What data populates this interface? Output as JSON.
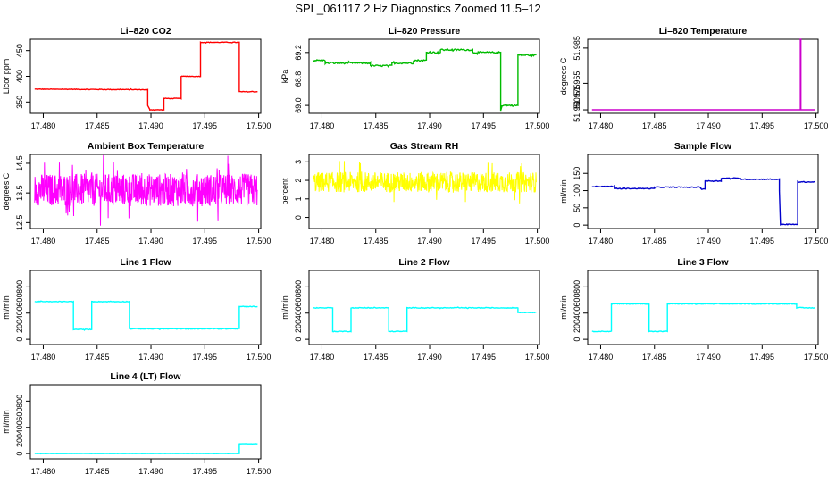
{
  "title": "SPL_061117  2 Hz Diagnostics Zoomed 11.5–12",
  "xaxis": {
    "ticks": [
      17.48,
      17.485,
      17.49,
      17.495,
      17.5
    ],
    "tick_labels": [
      "17.480",
      "17.485",
      "17.490",
      "17.495",
      "17.500"
    ]
  },
  "chart_data": [
    {
      "id": "co2",
      "type": "line",
      "title": "Li–820 CO2",
      "ylabel": "Licor ppm",
      "color": "#ff0000",
      "xlim": [
        17.4788,
        17.5002
      ],
      "ylim": [
        328,
        472
      ],
      "yticks": [
        350,
        400,
        450
      ],
      "ytick_labels": [
        "350",
        "400",
        "450"
      ],
      "noise": 0.6,
      "x": [
        17.4792,
        17.4897,
        17.4897,
        17.4899,
        17.4899,
        17.4912,
        17.4912,
        17.4928,
        17.4928,
        17.4946,
        17.4946,
        17.4982,
        17.4982,
        17.4999
      ],
      "y": [
        375,
        374,
        343,
        335,
        335,
        335,
        357,
        357,
        400,
        400,
        466,
        466,
        370,
        370
      ]
    },
    {
      "id": "pressure",
      "type": "line",
      "title": "Li–820 Pressure",
      "ylabel": "kPa",
      "color": "#00bb00",
      "xlim": [
        17.4788,
        17.5002
      ],
      "ylim": [
        68.97,
        69.25
      ],
      "yticks": [
        69.0,
        69.2
      ],
      "ytick_labels": [
        "69.0",
        "69.2"
      ],
      "extra_ytick_labels": [
        "68.8"
      ],
      "noise": 0.003,
      "x": [
        17.4792,
        17.4803,
        17.4803,
        17.4825,
        17.4825,
        17.4845,
        17.4845,
        17.4865,
        17.4865,
        17.4885,
        17.4885,
        17.4897,
        17.4897,
        17.491,
        17.491,
        17.494,
        17.494,
        17.4966,
        17.4966,
        17.4967,
        17.4967,
        17.4982,
        17.4982,
        17.4999
      ],
      "y": [
        69.17,
        69.17,
        69.16,
        69.16,
        69.16,
        69.16,
        69.15,
        69.15,
        69.16,
        69.16,
        69.17,
        69.17,
        69.2,
        69.2,
        69.21,
        69.21,
        69.2,
        69.2,
        68.98,
        69.0,
        69.0,
        69.0,
        69.19,
        69.19
      ]
    },
    {
      "id": "temperature",
      "type": "line",
      "title": "Li–820 Temperature",
      "ylabel": "degrees C",
      "color": "#cc00cc",
      "xlim": [
        17.4788,
        17.5002
      ],
      "ylim": [
        51.948,
        51.99
      ],
      "yticks": [
        51.95,
        51.965,
        51.985
      ],
      "ytick_labels": [
        "51.950",
        "51.965",
        "51.985"
      ],
      "extra_ytick_labels": [
        "51.975"
      ],
      "noise": 0,
      "x": [
        17.4792,
        17.49855,
        17.49855,
        17.4986,
        17.4986,
        17.4999
      ],
      "y": [
        51.95,
        51.95,
        51.99,
        51.99,
        51.95,
        51.95
      ]
    },
    {
      "id": "ambient",
      "type": "line",
      "title": "Ambient Box Temperature",
      "ylabel": "degrees C",
      "color": "#ff00ff",
      "xlim": [
        17.4788,
        17.5002
      ],
      "ylim": [
        12.3,
        14.8
      ],
      "yticks": [
        12.5,
        13.5,
        14.5
      ],
      "ytick_labels": [
        "12.5",
        "13.5",
        "14.5"
      ],
      "noise": 0.55,
      "x": [
        17.4792,
        17.4999
      ],
      "y": [
        13.6,
        13.6
      ]
    },
    {
      "id": "rh",
      "type": "line",
      "title": "Gas Stream RH",
      "ylabel": "percent",
      "color": "#ffff00",
      "xlim": [
        17.4788,
        17.5002
      ],
      "ylim": [
        -0.6,
        3.4
      ],
      "yticks": [
        0,
        1,
        2,
        3
      ],
      "ytick_labels": [
        "0",
        "1",
        "2",
        "3"
      ],
      "noise": 0.55,
      "x": [
        17.4792,
        17.4999
      ],
      "y": [
        1.9,
        1.9
      ]
    },
    {
      "id": "sample",
      "type": "line",
      "title": "Sample Flow",
      "ylabel": "ml/min",
      "color": "#0000cc",
      "xlim": [
        17.4788,
        17.5002
      ],
      "ylim": [
        -10,
        205
      ],
      "yticks": [
        0,
        50,
        100,
        150
      ],
      "ytick_labels": [
        "0",
        "50",
        "100",
        "150"
      ],
      "noise": 1.2,
      "x": [
        17.4792,
        17.4813,
        17.4813,
        17.485,
        17.485,
        17.4893,
        17.4893,
        17.4897,
        17.4897,
        17.4912,
        17.4912,
        17.493,
        17.493,
        17.4966,
        17.4966,
        17.4967,
        17.4967,
        17.4983,
        17.4983,
        17.4999
      ],
      "y": [
        112,
        112,
        106,
        106,
        110,
        110,
        105,
        105,
        128,
        128,
        136,
        136,
        133,
        133,
        100,
        2,
        2,
        2,
        125,
        125
      ]
    },
    {
      "id": "line1",
      "type": "line",
      "title": "Line 1 Flow",
      "ylabel": "ml/min",
      "color": "#00ffff",
      "xlim": [
        17.4788,
        17.5002
      ],
      "ylim": [
        -80,
        1050
      ],
      "yticks": [
        0,
        400,
        800
      ],
      "ytick_labels": [
        "0",
        "400",
        "800"
      ],
      "extra_ytick_labels": [
        "200",
        "600"
      ],
      "noise": 5,
      "x": [
        17.4792,
        17.4828,
        17.4828,
        17.4845,
        17.4845,
        17.488,
        17.488,
        17.4982,
        17.4982,
        17.4999
      ],
      "y": [
        575,
        575,
        150,
        150,
        575,
        575,
        160,
        160,
        500,
        500
      ]
    },
    {
      "id": "line2",
      "type": "line",
      "title": "Line 2 Flow",
      "ylabel": "ml/min",
      "color": "#00ffff",
      "xlim": [
        17.4788,
        17.5002
      ],
      "ylim": [
        -80,
        1050
      ],
      "yticks": [
        0,
        400,
        800
      ],
      "ytick_labels": [
        "0",
        "400",
        "800"
      ],
      "extra_ytick_labels": [
        "200",
        "600"
      ],
      "noise": 5,
      "x": [
        17.4792,
        17.481,
        17.481,
        17.4827,
        17.4827,
        17.4862,
        17.4862,
        17.4879,
        17.4879,
        17.4982,
        17.4982,
        17.4999
      ],
      "y": [
        480,
        480,
        120,
        120,
        480,
        480,
        120,
        120,
        480,
        480,
        410,
        410
      ]
    },
    {
      "id": "line3",
      "type": "line",
      "title": "Line 3 Flow",
      "ylabel": "ml/min",
      "color": "#00ffff",
      "xlim": [
        17.4788,
        17.5002
      ],
      "ylim": [
        -80,
        1050
      ],
      "yticks": [
        0,
        400,
        800
      ],
      "ytick_labels": [
        "0",
        "400",
        "800"
      ],
      "extra_ytick_labels": [
        "200",
        "600"
      ],
      "noise": 5,
      "x": [
        17.4792,
        17.481,
        17.481,
        17.4845,
        17.4845,
        17.4862,
        17.4862,
        17.4982,
        17.4982,
        17.4999
      ],
      "y": [
        120,
        120,
        540,
        540,
        120,
        120,
        540,
        540,
        480,
        480
      ]
    },
    {
      "id": "line4",
      "type": "line",
      "title": "Line 4 (LT) Flow",
      "ylabel": "ml/min",
      "color": "#00ffff",
      "xlim": [
        17.4788,
        17.5002
      ],
      "ylim": [
        -80,
        1050
      ],
      "yticks": [
        0,
        400,
        800
      ],
      "ytick_labels": [
        "0",
        "400",
        "800"
      ],
      "extra_ytick_labels": [
        "200",
        "600"
      ],
      "noise": 2,
      "x": [
        17.4792,
        17.4982,
        17.4982,
        17.4999
      ],
      "y": [
        0,
        0,
        150,
        150
      ]
    }
  ]
}
